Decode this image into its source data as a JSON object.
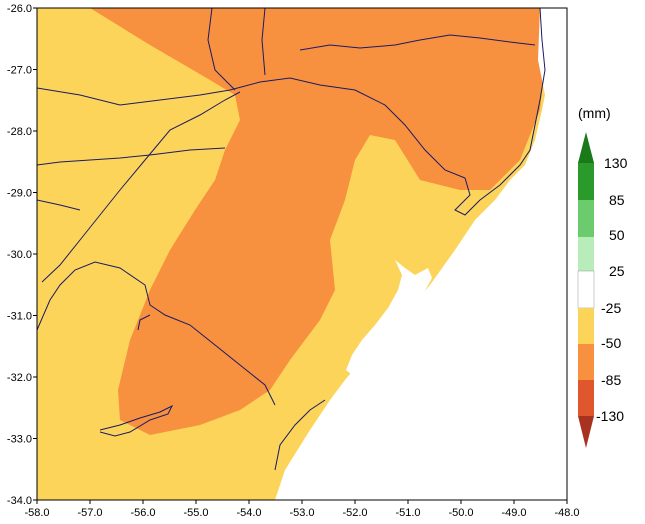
{
  "map": {
    "lon_ticks": [
      "-58.0",
      "-57.0",
      "-56.0",
      "-55.0",
      "-54.0",
      "-53.0",
      "-52.0",
      "-51.0",
      "-50.0",
      "-49.0",
      "-48.0"
    ],
    "lat_ticks": [
      "-26.0",
      "-27.0",
      "-28.0",
      "-29.0",
      "-30.0",
      "-31.0",
      "-32.0",
      "-33.0",
      "-34.0"
    ],
    "lon_range": [
      -58.0,
      -48.0
    ],
    "lat_range": [
      -34.0,
      -26.0
    ]
  },
  "legend": {
    "unit": "(mm)",
    "labels": [
      "130",
      "85",
      "50",
      "25",
      "-25",
      "-50",
      "-85",
      "-130"
    ],
    "colors": {
      "above_130": "#1a7a1a",
      "85_130": "#2a9a2a",
      "50_85": "#6ccb6c",
      "25_50": "#b8ecb8",
      "neutral": "#ffffff",
      "minus25_minus50": "#fcd45a",
      "minus50_minus85": "#f7913f",
      "minus85_minus130": "#e0562d",
      "below_minus130": "#a83220"
    }
  },
  "fields": {
    "background_color": "#fcd45a",
    "anomaly_color": "#f7913f",
    "lagoon_color": "#ffffff",
    "ocean_color": "#ffffff",
    "border_color": "#1a1a66"
  }
}
